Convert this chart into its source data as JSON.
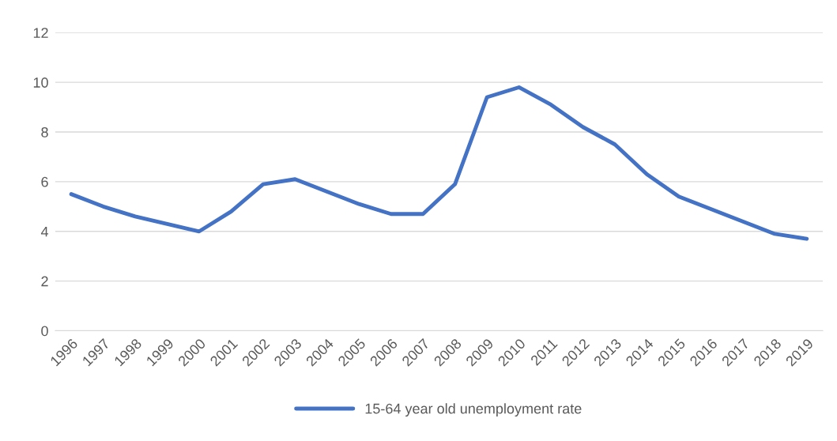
{
  "chart_data": {
    "type": "line",
    "categories": [
      "1996",
      "1997",
      "1998",
      "1999",
      "2000",
      "2001",
      "2002",
      "2003",
      "2004",
      "2005",
      "2006",
      "2007",
      "2008",
      "2009",
      "2010",
      "2011",
      "2012",
      "2013",
      "2014",
      "2015",
      "2016",
      "2017",
      "2018",
      "2019"
    ],
    "series": [
      {
        "name": "15-64 year old unemployment rate",
        "color": "#4472c4",
        "values": [
          5.5,
          5.0,
          4.6,
          4.3,
          4.0,
          4.8,
          5.9,
          6.1,
          5.6,
          5.1,
          4.7,
          4.7,
          5.9,
          9.4,
          9.8,
          9.1,
          8.2,
          7.5,
          6.3,
          5.4,
          4.9,
          4.4,
          3.9,
          3.7
        ]
      }
    ],
    "ylim": [
      0,
      12
    ],
    "yticks": [
      0,
      2,
      4,
      6,
      8,
      10,
      12
    ],
    "grid": "y",
    "legend": "bottom",
    "marker": "none",
    "line_style": "solid"
  }
}
